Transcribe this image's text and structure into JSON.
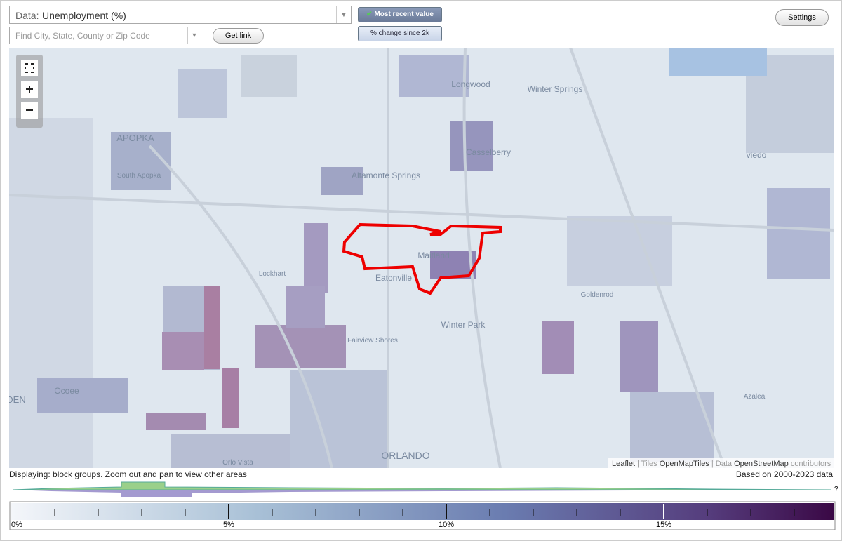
{
  "toolbar": {
    "data_label": "Data:",
    "data_value": "Unemployment (%)",
    "search_placeholder": "Find City, State, County or Zip Code",
    "get_link": "Get link",
    "most_recent": "Most recent value",
    "percent_change": "% change since 2k",
    "settings": "Settings"
  },
  "map": {
    "places": [
      "Longwood",
      "Winter Springs",
      "APOPKA",
      "South Apopka",
      "Casselberry",
      "Altamonte Springs",
      "viedo",
      "Maitland",
      "Lockhart",
      "Eatonville",
      "Goldenrod",
      "Winter Park",
      "Fairview Shores",
      "Ocoee",
      "DEN",
      "Azalea",
      "ORLANDO",
      "Orlo Vista"
    ],
    "attribution": {
      "leaflet": "Leaflet",
      "tiles": "| Tiles",
      "tiles_source": "OpenMapTiles",
      "data": "| Data",
      "data_source": "OpenStreetMap",
      "contributors": "contributors"
    }
  },
  "footer": {
    "displaying": "Displaying: block groups. Zoom out and pan to view other areas",
    "based_on": "Based on 2000-2023 data",
    "help": "?"
  },
  "legend": {
    "labels": [
      "0%",
      "5%",
      "10%",
      "15%"
    ]
  }
}
